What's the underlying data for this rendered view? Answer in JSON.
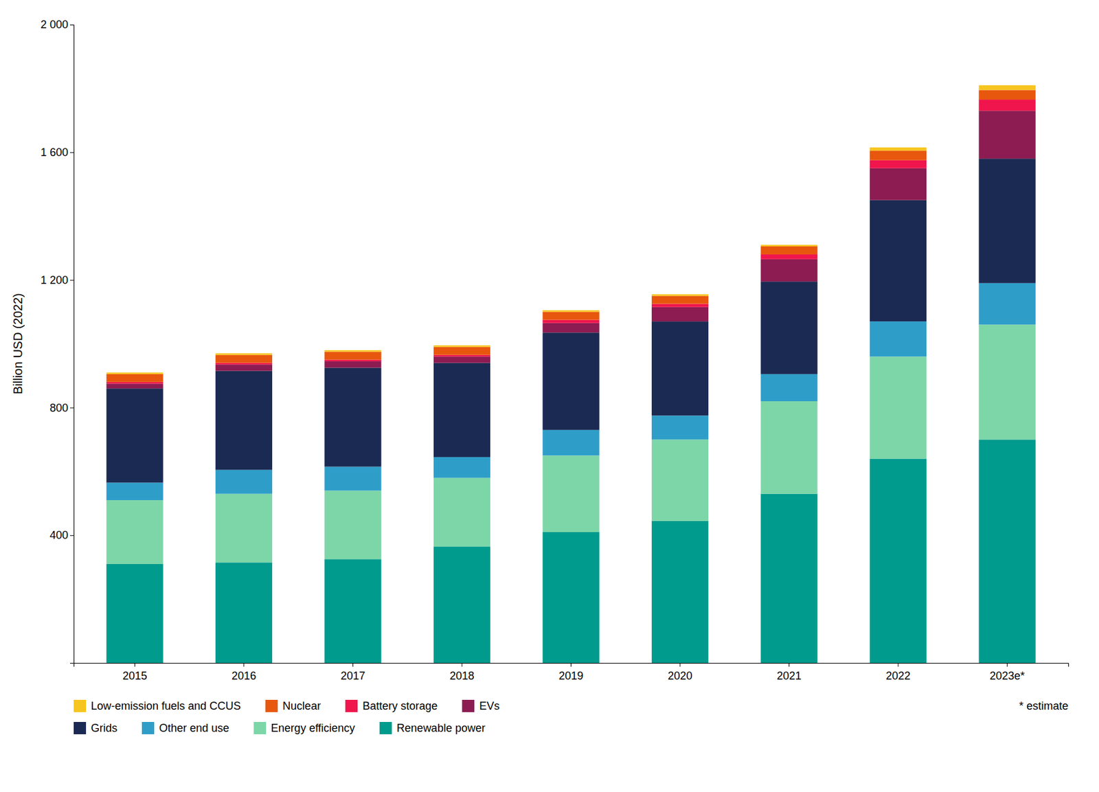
{
  "chart_data": {
    "type": "bar",
    "stacked": true,
    "categories": [
      "2015",
      "2016",
      "2017",
      "2018",
      "2019",
      "2020",
      "2021",
      "2022",
      "2023e*"
    ],
    "series": [
      {
        "name": "Renewable power",
        "color": "#009B8D",
        "values": [
          310,
          315,
          325,
          365,
          410,
          445,
          530,
          640,
          700
        ]
      },
      {
        "name": "Energy efficiency",
        "color": "#7DD6A8",
        "values": [
          200,
          215,
          215,
          215,
          240,
          255,
          290,
          320,
          360
        ]
      },
      {
        "name": "Other end use",
        "color": "#2E9EC9",
        "values": [
          55,
          75,
          75,
          65,
          80,
          75,
          85,
          110,
          130
        ]
      },
      {
        "name": "Grids",
        "color": "#1B2A52",
        "values": [
          295,
          310,
          310,
          295,
          305,
          295,
          290,
          380,
          390
        ]
      },
      {
        "name": "EVs",
        "color": "#8C1C52",
        "values": [
          15,
          20,
          20,
          20,
          30,
          45,
          70,
          100,
          150
        ]
      },
      {
        "name": "Battery storage",
        "color": "#F0154C",
        "values": [
          5,
          5,
          5,
          5,
          10,
          10,
          15,
          25,
          35
        ]
      },
      {
        "name": "Nuclear",
        "color": "#E8570E",
        "values": [
          25,
          25,
          25,
          25,
          25,
          25,
          25,
          30,
          30
        ]
      },
      {
        "name": "Low-emission fuels and CCUS",
        "color": "#F7C520",
        "values": [
          5,
          5,
          5,
          5,
          5,
          5,
          5,
          10,
          15
        ]
      }
    ],
    "ylabel": "Billion USD (2022)",
    "ylim": [
      0,
      2000
    ],
    "yticks": [
      400,
      800,
      {
        "value": 1200,
        "label": "1 200"
      },
      {
        "value": 1600,
        "label": "1 600"
      },
      {
        "value": 2000,
        "label": "2 000"
      }
    ],
    "grid": false,
    "annotations": [
      "* estimate"
    ]
  }
}
